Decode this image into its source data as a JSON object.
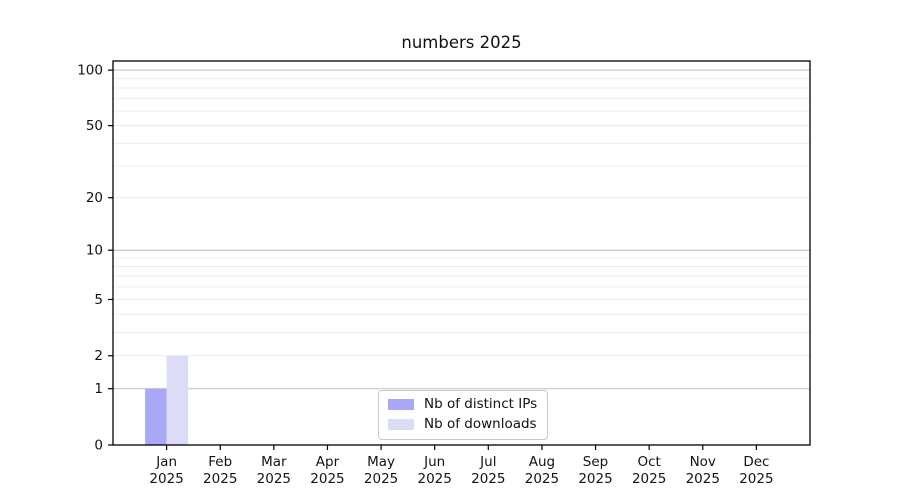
{
  "chart_data": {
    "type": "bar",
    "title": "numbers 2025",
    "categories": [
      "Jan",
      "Feb",
      "Mar",
      "Apr",
      "May",
      "Jun",
      "Jul",
      "Aug",
      "Sep",
      "Oct",
      "Nov",
      "Dec"
    ],
    "category_year": "2025",
    "series": [
      {
        "name": "Nb of distinct IPs",
        "color": "#a8a8f6",
        "values": [
          1,
          0,
          0,
          0,
          0,
          0,
          0,
          0,
          0,
          0,
          0,
          0
        ]
      },
      {
        "name": "Nb of downloads",
        "color": "#dcdcf7",
        "values": [
          2,
          0,
          0,
          0,
          0,
          0,
          0,
          0,
          0,
          0,
          0,
          0
        ]
      }
    ],
    "xlabel": "",
    "ylabel": "",
    "yscale": "log1p",
    "ylim": [
      0,
      112
    ],
    "ytick_values": [
      0,
      1,
      2,
      5,
      10,
      20,
      50,
      100
    ],
    "ytick_labels": [
      "0",
      "1",
      "2",
      "5",
      "10",
      "20",
      "50",
      "100"
    ],
    "major_gridlines": [
      1,
      10,
      100
    ],
    "minor_gridlines": [
      2,
      3,
      4,
      5,
      6,
      7,
      8,
      9,
      20,
      30,
      40,
      50,
      60,
      70,
      80,
      90
    ],
    "grid": true,
    "legend_position": "lower center",
    "colors": {
      "spine": "#000000",
      "major_grid": "#c8c8c8",
      "minor_grid": "#ececec",
      "tick_text": "#141414",
      "background": "#ffffff"
    }
  }
}
